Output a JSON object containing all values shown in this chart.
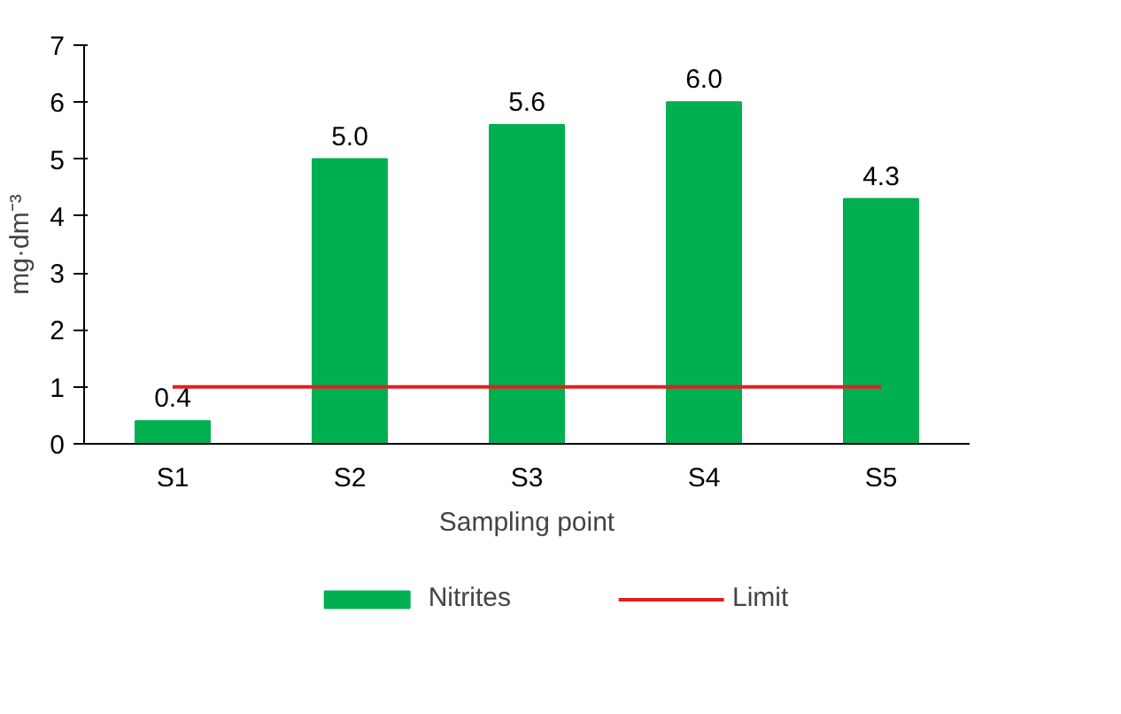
{
  "chart_data": {
    "type": "bar",
    "xlabel": "Sampling point",
    "ylabel": "mg·dm⁻³",
    "categories": [
      "S1",
      "S2",
      "S3",
      "S4",
      "S5"
    ],
    "series": [
      {
        "name": "Nitrites",
        "type": "bar",
        "color": "#00b050",
        "values": [
          0.4,
          5.0,
          5.6,
          6.0,
          4.3
        ],
        "value_labels": [
          "0.4",
          "5.0",
          "5.6",
          "6.0",
          "4.3"
        ]
      },
      {
        "name": "Limit",
        "type": "line",
        "color": "#e02020",
        "values": [
          1,
          1,
          1,
          1,
          1
        ]
      }
    ],
    "ylim": [
      0,
      7
    ],
    "yticks": [
      0,
      1,
      2,
      3,
      4,
      5,
      6,
      7
    ],
    "grid": false,
    "legend": "bottom"
  }
}
